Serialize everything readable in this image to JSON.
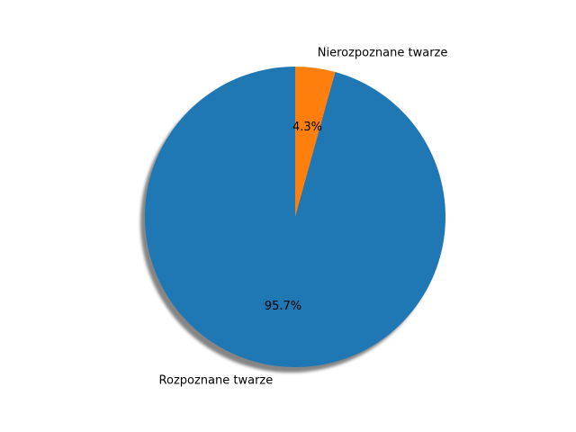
{
  "chart_data": {
    "type": "pie",
    "categories": [
      "Nierozpoznane twarze",
      "Rozpoznane twarze"
    ],
    "values": [
      4.3,
      95.7
    ],
    "percent_labels": [
      "4.3%",
      "95.7%"
    ],
    "colors": [
      "#ff7f0e",
      "#1f77b4"
    ],
    "shadow": true,
    "start_angle_deg": 90,
    "direction": "counterclockwise-from-top-going-right",
    "title": "",
    "legend": "none"
  }
}
